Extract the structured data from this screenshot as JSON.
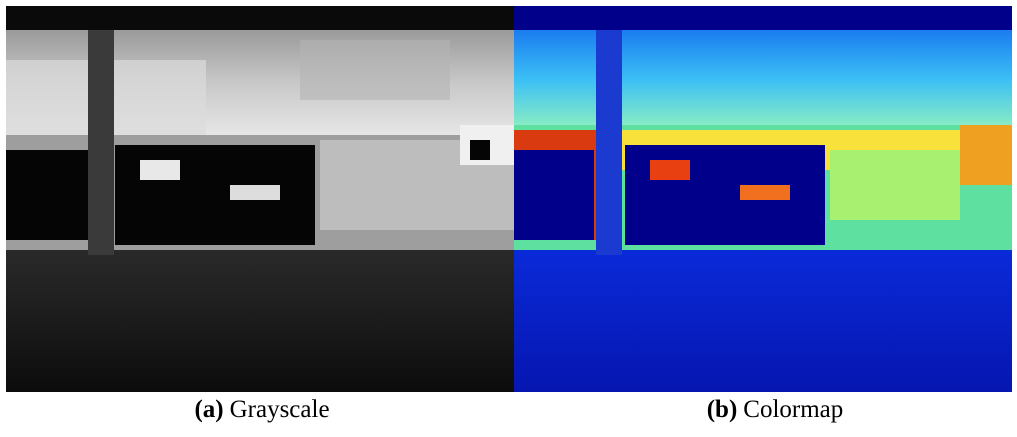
{
  "figure": {
    "panels": [
      {
        "label": "(a)",
        "caption": "Grayscale"
      },
      {
        "label": "(b)",
        "caption": "Colormap"
      }
    ]
  }
}
